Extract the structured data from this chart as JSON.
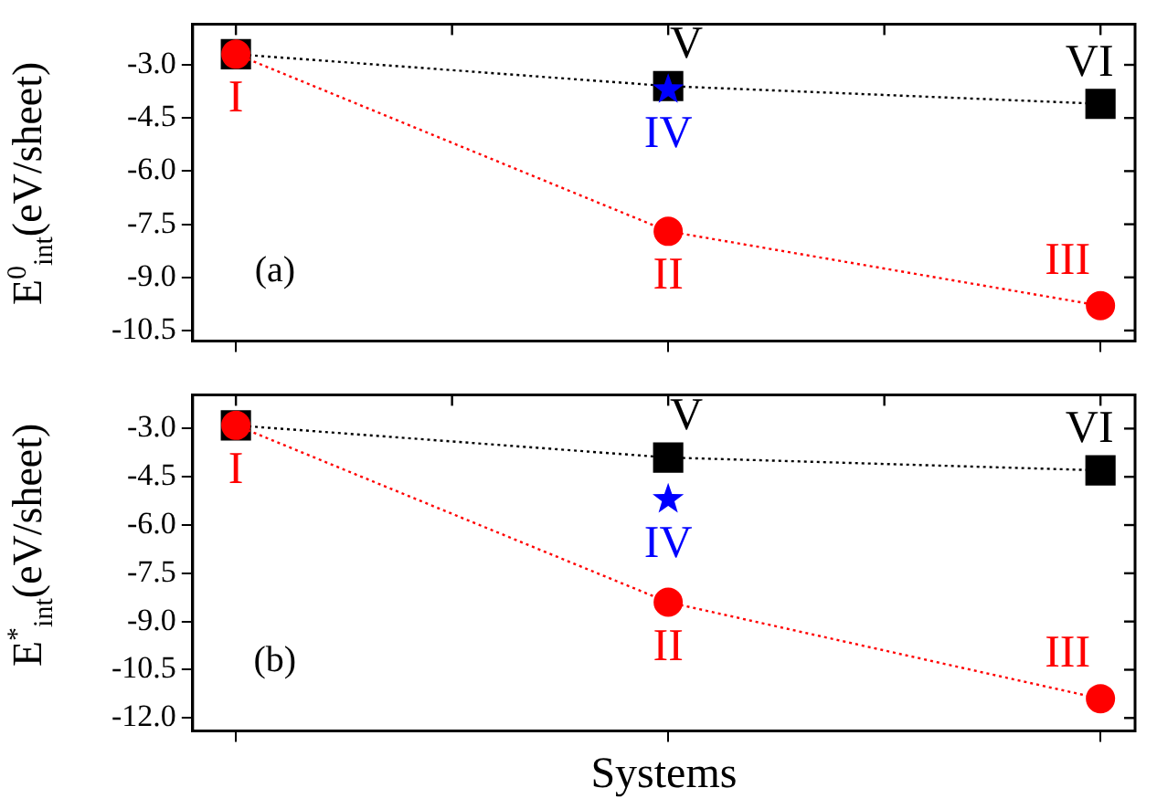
{
  "chart_data": [
    {
      "type": "line",
      "ylabel": "E$^{0}$$_{int}$(eV/sheet)",
      "categories": [
        null,
        null,
        null
      ],
      "ylim": [
        -10.8,
        -1.85
      ],
      "yticks": [
        {
          "value": -3,
          "label": "-3.0"
        },
        {
          "value": -4.5,
          "label": "-4.5"
        },
        {
          "value": -6,
          "label": "-6.0"
        },
        {
          "value": -7.5,
          "label": "-7.5"
        },
        {
          "value": -9,
          "label": "-9.0"
        },
        {
          "value": -10.5,
          "label": "-10.5"
        }
      ],
      "tick_labels": "y",
      "grid": false,
      "legend": false,
      "line_style": "dotted",
      "series": [
        {
          "color": "#000000",
          "marker": "square",
          "values": [
            -2.7,
            -3.6,
            -4.1
          ],
          "value_labels": [
            null,
            "V",
            "VI"
          ]
        },
        {
          "color": "#ff0000",
          "marker": "circle",
          "values": [
            -2.7,
            -7.7,
            -9.8
          ],
          "value_labels": [
            "I",
            "II",
            "III"
          ]
        },
        {
          "type": "scatter",
          "color": "#0000ff",
          "marker": "star",
          "values": [
            null,
            -3.7,
            null
          ],
          "value_labels": [
            null,
            "IV",
            null
          ]
        }
      ],
      "annotations": [
        "(a)"
      ]
    },
    {
      "type": "line",
      "ylabel": "E$^{*}$$_{int}$(eV/sheet)",
      "xlabel": "Systems",
      "categories": [
        null,
        null,
        null
      ],
      "ylim": [
        -12.4,
        -1.95
      ],
      "yticks": [
        {
          "value": -3,
          "label": "-3.0"
        },
        {
          "value": -4.5,
          "label": "-4.5"
        },
        {
          "value": -6,
          "label": "-6.0"
        },
        {
          "value": -7.5,
          "label": "-7.5"
        },
        {
          "value": -9,
          "label": "-9.0"
        },
        {
          "value": -10.5,
          "label": "-10.5"
        },
        {
          "value": -12,
          "label": "-12.0"
        }
      ],
      "tick_labels": "y",
      "grid": false,
      "legend": false,
      "line_style": "dotted",
      "series": [
        {
          "color": "#000000",
          "marker": "square",
          "values": [
            -2.9,
            -3.9,
            -4.3
          ],
          "value_labels": [
            null,
            "V",
            "VI"
          ]
        },
        {
          "color": "#ff0000",
          "marker": "circle",
          "values": [
            -2.9,
            -8.4,
            -11.4
          ],
          "value_labels": [
            "I",
            "II",
            "III"
          ]
        },
        {
          "type": "scatter",
          "color": "#0000ff",
          "marker": "star",
          "values": [
            null,
            -5.2,
            null
          ],
          "value_labels": [
            null,
            "IV",
            null
          ]
        }
      ],
      "annotations": [
        "(b)"
      ]
    }
  ]
}
